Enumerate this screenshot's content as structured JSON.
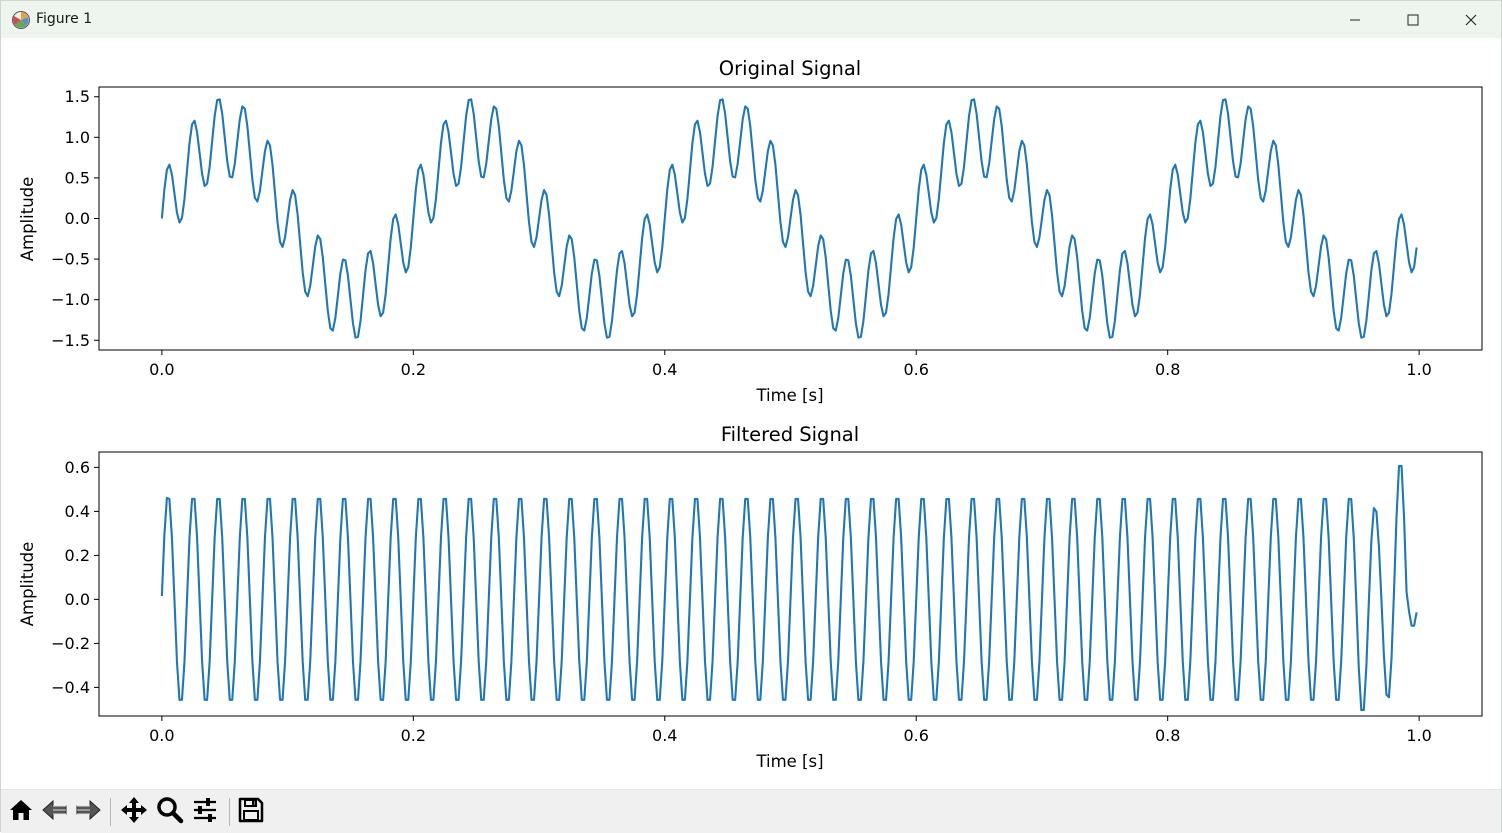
{
  "window": {
    "title": "Figure 1",
    "icons": {
      "app": "matplotlib-icon",
      "minimize": "minimize-icon",
      "maximize": "maximize-icon",
      "close": "close-icon"
    }
  },
  "toolbar": {
    "buttons": [
      {
        "name": "home-button",
        "icon": "home-icon"
      },
      {
        "name": "back-button",
        "icon": "back-arrow-icon"
      },
      {
        "name": "forward-button",
        "icon": "forward-arrow-icon"
      },
      {
        "name": "pan-button",
        "icon": "move-arrows-icon"
      },
      {
        "name": "zoom-button",
        "icon": "magnifier-icon"
      },
      {
        "name": "configure-subplots-button",
        "icon": "sliders-icon"
      },
      {
        "name": "save-button",
        "icon": "floppy-disk-icon"
      }
    ]
  },
  "chart_data": [
    {
      "type": "line",
      "title": "Original Signal",
      "xlabel": "Time [s]",
      "ylabel": "Amplitude",
      "xlim": [
        -0.05,
        1.05
      ],
      "ylim": [
        -1.62,
        1.62
      ],
      "xticks": [
        0.0,
        0.2,
        0.4,
        0.6,
        0.8,
        1.0
      ],
      "xtick_labels": [
        "0.0",
        "0.2",
        "0.4",
        "0.6",
        "0.8",
        "1.0"
      ],
      "yticks": [
        1.5,
        1.0,
        0.5,
        0.0,
        -0.5,
        -1.0,
        -1.5
      ],
      "ytick_labels": [
        "1.5",
        "1.0",
        "0.5",
        "0.0",
        "−0.5",
        "−1.0",
        "−1.5"
      ],
      "grid": false,
      "color": "#1f77b4",
      "series": [
        {
          "signal": "sin(2π·5·t) + 0.5·sin(2π·50·t)",
          "x_start": 0.0,
          "x_end": 0.998,
          "x_step": 0.002
        }
      ]
    },
    {
      "type": "line",
      "title": "Filtered Signal",
      "xlabel": "Time [s]",
      "ylabel": "Amplitude",
      "xlim": [
        -0.05,
        1.05
      ],
      "ylim": [
        -0.53,
        0.67
      ],
      "xticks": [
        0.0,
        0.2,
        0.4,
        0.6,
        0.8,
        1.0
      ],
      "xtick_labels": [
        "0.0",
        "0.2",
        "0.4",
        "0.6",
        "0.8",
        "1.0"
      ],
      "yticks": [
        0.6,
        0.4,
        0.2,
        0.0,
        -0.2,
        -0.4
      ],
      "ytick_labels": [
        "0.6",
        "0.4",
        "0.2",
        "0.0",
        "−0.2",
        "−0.4"
      ],
      "grid": false,
      "color": "#1f77b4",
      "series": [
        {
          "signal": "≈ 0.48·sin(2π·50·t) with edge transients up to 0.63 near t≈0.985 and −0.52 near t≈0.955",
          "x_start": 0.0,
          "x_end": 0.998,
          "x_step": 0.002
        }
      ]
    }
  ]
}
